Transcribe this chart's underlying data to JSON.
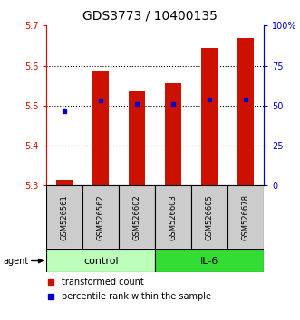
{
  "title": "GDS3773 / 10400135",
  "samples": [
    "GSM526561",
    "GSM526562",
    "GSM526602",
    "GSM526603",
    "GSM526605",
    "GSM526678"
  ],
  "bar_values": [
    5.315,
    5.585,
    5.535,
    5.555,
    5.645,
    5.67
  ],
  "bar_bottom": 5.3,
  "percentile_values": [
    5.487,
    5.513,
    5.503,
    5.503,
    5.515,
    5.515
  ],
  "ylim_left": [
    5.3,
    5.7
  ],
  "ylim_right": [
    0,
    100
  ],
  "yticks_left": [
    5.3,
    5.4,
    5.5,
    5.6,
    5.7
  ],
  "yticks_right": [
    0,
    25,
    50,
    75,
    100
  ],
  "ytick_labels_right": [
    "0",
    "25",
    "50",
    "75",
    "100%"
  ],
  "bar_color": "#cc1100",
  "marker_color": "#0000cc",
  "control_label": "control",
  "il6_label": "IL-6",
  "control_color": "#bbffbb",
  "il6_color": "#33dd33",
  "sample_box_color": "#cccccc",
  "agent_label": "agent",
  "legend_bar_label": "transformed count",
  "legend_marker_label": "percentile rank within the sample",
  "title_fontsize": 10,
  "axis_fontsize": 7,
  "sample_fontsize": 6,
  "group_fontsize": 8,
  "legend_fontsize": 7
}
